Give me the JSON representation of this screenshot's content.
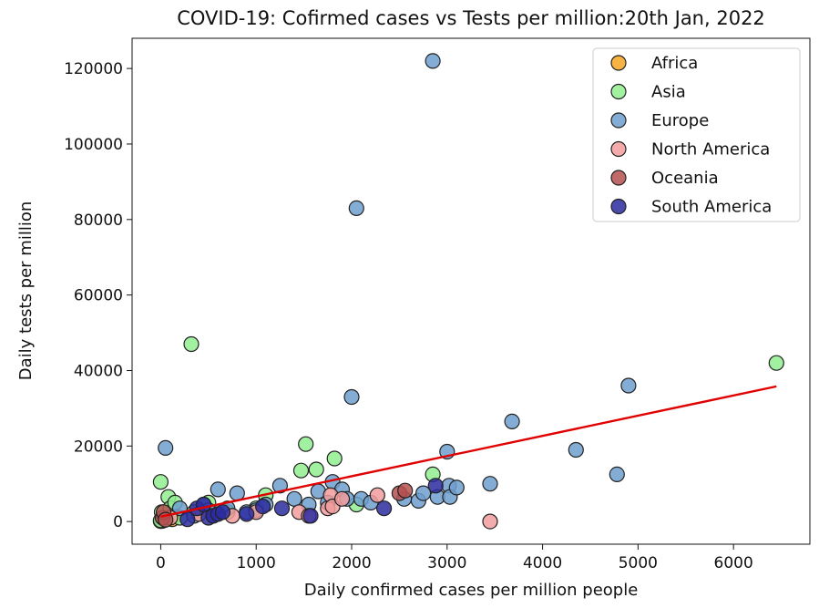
{
  "chart_data": {
    "type": "scatter",
    "title": "COVID-19: Cofirmed cases vs Tests per million:20th Jan, 2022",
    "xlabel": "Daily confirmed cases per million people",
    "ylabel": "Daily tests per million",
    "xlim": [
      -300,
      6800
    ],
    "ylim": [
      -6000,
      128000
    ],
    "xticks": [
      0,
      1000,
      2000,
      3000,
      4000,
      5000,
      6000
    ],
    "xtick_labels": [
      "0",
      "1000",
      "2000",
      "3000",
      "4000",
      "5000",
      "6000"
    ],
    "yticks": [
      0,
      20000,
      40000,
      60000,
      80000,
      100000,
      120000
    ],
    "ytick_labels": [
      "0",
      "20000",
      "40000",
      "60000",
      "80000",
      "100000",
      "120000"
    ],
    "grid": false,
    "legend_position": "top-right",
    "trendline": {
      "color": "#e00000",
      "points": [
        [
          0,
          1300
        ],
        [
          6450,
          35800
        ]
      ]
    },
    "series": [
      {
        "name": "Africa",
        "color": "#f5a623",
        "points": [
          [
            0,
            100
          ],
          [
            5,
            300
          ],
          [
            10,
            150
          ],
          [
            15,
            500
          ],
          [
            20,
            200
          ],
          [
            30,
            800
          ],
          [
            40,
            400
          ],
          [
            60,
            1200
          ],
          [
            120,
            600
          ]
        ]
      },
      {
        "name": "Asia",
        "color": "#90ee90",
        "points": [
          [
            0,
            10500
          ],
          [
            0,
            300
          ],
          [
            10,
            2500
          ],
          [
            50,
            500
          ],
          [
            80,
            6500
          ],
          [
            100,
            3500
          ],
          [
            150,
            5000
          ],
          [
            200,
            1000
          ],
          [
            320,
            47000
          ],
          [
            350,
            2500
          ],
          [
            500,
            5000
          ],
          [
            700,
            2500
          ],
          [
            1000,
            3500
          ],
          [
            1100,
            7000
          ],
          [
            1470,
            13500
          ],
          [
            1520,
            20500
          ],
          [
            1630,
            13800
          ],
          [
            1820,
            16700
          ],
          [
            2050,
            4500
          ],
          [
            2850,
            12500
          ],
          [
            6450,
            42000
          ]
        ]
      },
      {
        "name": "Europe",
        "color": "#6f9fcf",
        "points": [
          [
            50,
            19500
          ],
          [
            200,
            3500
          ],
          [
            350,
            1500
          ],
          [
            450,
            4500
          ],
          [
            500,
            3000
          ],
          [
            600,
            8500
          ],
          [
            700,
            3500
          ],
          [
            800,
            7500
          ],
          [
            900,
            2500
          ],
          [
            1000,
            3000
          ],
          [
            1100,
            4500
          ],
          [
            1250,
            9500
          ],
          [
            1400,
            6000
          ],
          [
            1550,
            4500
          ],
          [
            1650,
            8000
          ],
          [
            1750,
            5000
          ],
          [
            1800,
            10500
          ],
          [
            1900,
            8500
          ],
          [
            1950,
            6000
          ],
          [
            2000,
            33000
          ],
          [
            2050,
            83000
          ],
          [
            2100,
            6000
          ],
          [
            2200,
            5000
          ],
          [
            2550,
            6000
          ],
          [
            2700,
            5500
          ],
          [
            2750,
            7500
          ],
          [
            2850,
            122000
          ],
          [
            2900,
            6500
          ],
          [
            3000,
            18500
          ],
          [
            3020,
            9500
          ],
          [
            3030,
            6500
          ],
          [
            3100,
            9000
          ],
          [
            3450,
            10000
          ],
          [
            3680,
            26500
          ],
          [
            4350,
            19000
          ],
          [
            4780,
            12500
          ],
          [
            4900,
            36000
          ]
        ]
      },
      {
        "name": "North America",
        "color": "#f19c9c",
        "points": [
          [
            100,
            1000
          ],
          [
            400,
            2000
          ],
          [
            750,
            1500
          ],
          [
            1000,
            2500
          ],
          [
            1450,
            2500
          ],
          [
            1550,
            1500
          ],
          [
            1750,
            3500
          ],
          [
            1780,
            7000
          ],
          [
            1800,
            4000
          ],
          [
            1900,
            6000
          ],
          [
            2270,
            7000
          ],
          [
            3450,
            0
          ]
        ]
      },
      {
        "name": "Oceania",
        "color": "#b55050",
        "points": [
          [
            20,
            1000
          ],
          [
            30,
            2500
          ],
          [
            50,
            500
          ],
          [
            2500,
            7500
          ],
          [
            2560,
            8200
          ]
        ]
      },
      {
        "name": "South America",
        "color": "#2c2ca0",
        "points": [
          [
            280,
            600
          ],
          [
            380,
            3500
          ],
          [
            450,
            4500
          ],
          [
            500,
            1000
          ],
          [
            550,
            1500
          ],
          [
            600,
            2000
          ],
          [
            650,
            2500
          ],
          [
            900,
            2000
          ],
          [
            1070,
            4000
          ],
          [
            1270,
            3500
          ],
          [
            1570,
            1500
          ],
          [
            2340,
            3500
          ],
          [
            2880,
            9500
          ]
        ]
      }
    ]
  }
}
